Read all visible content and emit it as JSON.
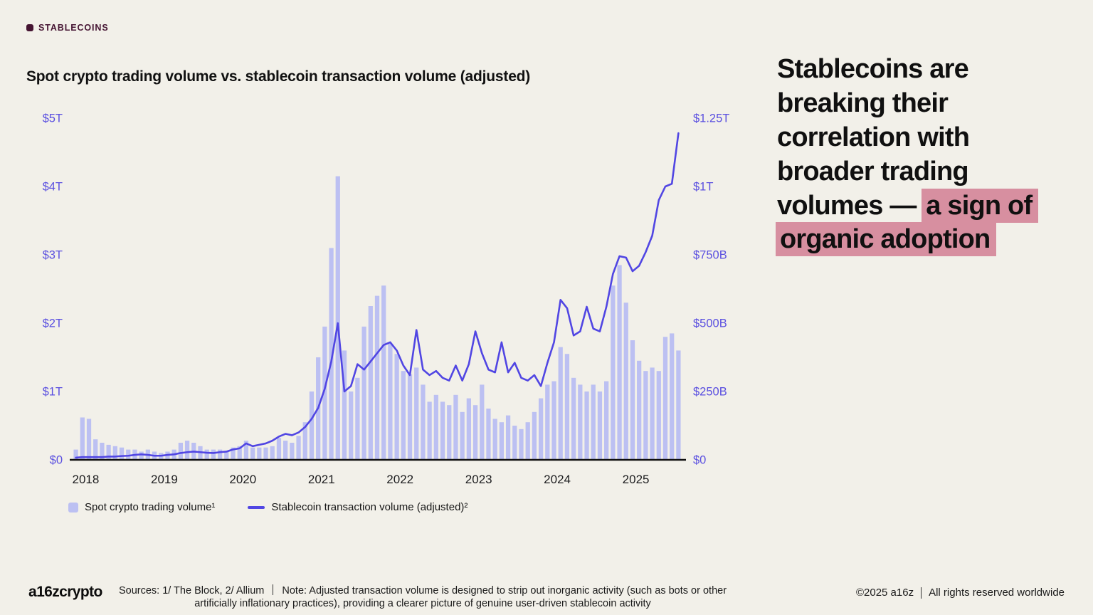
{
  "colors": {
    "bg": "#F2F0E9",
    "bar": "#BCC0F2",
    "line": "#5146E3",
    "axis_label": "#5B50E0",
    "highlight": "#D78FA0",
    "eyebrow": "#451432"
  },
  "eyebrow": {
    "label": "STABLECOINS"
  },
  "chart_title": "Spot crypto trading volume vs. stablecoin transaction volume (adjusted)",
  "headline": {
    "pre": "Stablecoins are breaking their correlation with broader trading volumes — ",
    "highlight": "a sign of organic adoption"
  },
  "legend": {
    "items": [
      {
        "label": "Spot crypto trading volume¹"
      },
      {
        "label": "Stablecoin transaction volume (adjusted)²"
      }
    ]
  },
  "footer": {
    "logo": "a16zcrypto",
    "sources": "Sources: 1/ The Block, 2/ Allium",
    "note": "Note: Adjusted transaction volume is designed to strip out inorganic activity (such as bots or other artificially inflationary practices), providing a clearer picture of genuine user-driven stablecoin activity",
    "copyright": "©2025 a16z",
    "rights": "All rights reserved worldwide"
  },
  "chart_data": {
    "type": "bar+line dual-axis",
    "frequency": "monthly",
    "start": "2018-01",
    "x_year_labels": [
      "2018",
      "2019",
      "2020",
      "2021",
      "2022",
      "2023",
      "2024",
      "2025"
    ],
    "left_axis": {
      "title": "Spot crypto trading volume",
      "unit": "$T",
      "max": 5,
      "ticks": [
        "$0",
        "$1T",
        "$2T",
        "$3T",
        "$4T",
        "$5T"
      ]
    },
    "right_axis": {
      "title": "Stablecoin transaction volume (adjusted)",
      "unit": "$B",
      "max": 1250,
      "ticks": [
        "$0",
        "$250B",
        "$500B",
        "$750B",
        "$1T",
        "$1.25T"
      ]
    },
    "grid": false,
    "legend_position": "bottom-left",
    "series": [
      {
        "name": "Spot crypto trading volume",
        "type": "bar",
        "axis": "left",
        "unit": "$T",
        "color": "#BCC0F2",
        "values": [
          0.15,
          0.62,
          0.6,
          0.3,
          0.25,
          0.22,
          0.2,
          0.18,
          0.15,
          0.15,
          0.12,
          0.15,
          0.12,
          0.1,
          0.12,
          0.15,
          0.25,
          0.28,
          0.25,
          0.2,
          0.15,
          0.15,
          0.15,
          0.12,
          0.18,
          0.2,
          0.28,
          0.18,
          0.18,
          0.18,
          0.2,
          0.32,
          0.28,
          0.25,
          0.35,
          0.55,
          1.0,
          1.5,
          1.95,
          3.1,
          4.15,
          1.6,
          1.0,
          1.2,
          1.95,
          2.25,
          2.4,
          2.55,
          1.7,
          1.55,
          1.3,
          1.25,
          1.35,
          1.1,
          0.85,
          0.95,
          0.85,
          0.8,
          0.95,
          0.7,
          0.9,
          0.8,
          1.1,
          0.75,
          0.6,
          0.55,
          0.65,
          0.5,
          0.45,
          0.55,
          0.7,
          0.9,
          1.1,
          1.15,
          1.65,
          1.55,
          1.2,
          1.1,
          1.0,
          1.1,
          1.0,
          1.15,
          2.55,
          2.85,
          2.3,
          1.75,
          1.45,
          1.3,
          1.35,
          1.3,
          1.8,
          1.85,
          1.6
        ]
      },
      {
        "name": "Stablecoin transaction volume (adjusted)",
        "type": "line",
        "axis": "right",
        "unit": "$B",
        "color": "#5146E3",
        "values": [
          8,
          10,
          10,
          10,
          10,
          12,
          12,
          14,
          15,
          18,
          20,
          18,
          15,
          15,
          18,
          20,
          25,
          28,
          30,
          28,
          26,
          25,
          28,
          30,
          38,
          42,
          60,
          50,
          55,
          60,
          70,
          85,
          95,
          90,
          100,
          120,
          150,
          190,
          260,
          360,
          500,
          250,
          270,
          350,
          330,
          360,
          390,
          420,
          430,
          400,
          345,
          310,
          475,
          330,
          310,
          325,
          300,
          290,
          345,
          290,
          350,
          470,
          390,
          330,
          320,
          430,
          320,
          355,
          300,
          290,
          310,
          270,
          355,
          430,
          585,
          555,
          455,
          470,
          560,
          480,
          470,
          560,
          680,
          745,
          740,
          690,
          710,
          760,
          820,
          950,
          1000,
          1010,
          1195
        ]
      }
    ]
  }
}
